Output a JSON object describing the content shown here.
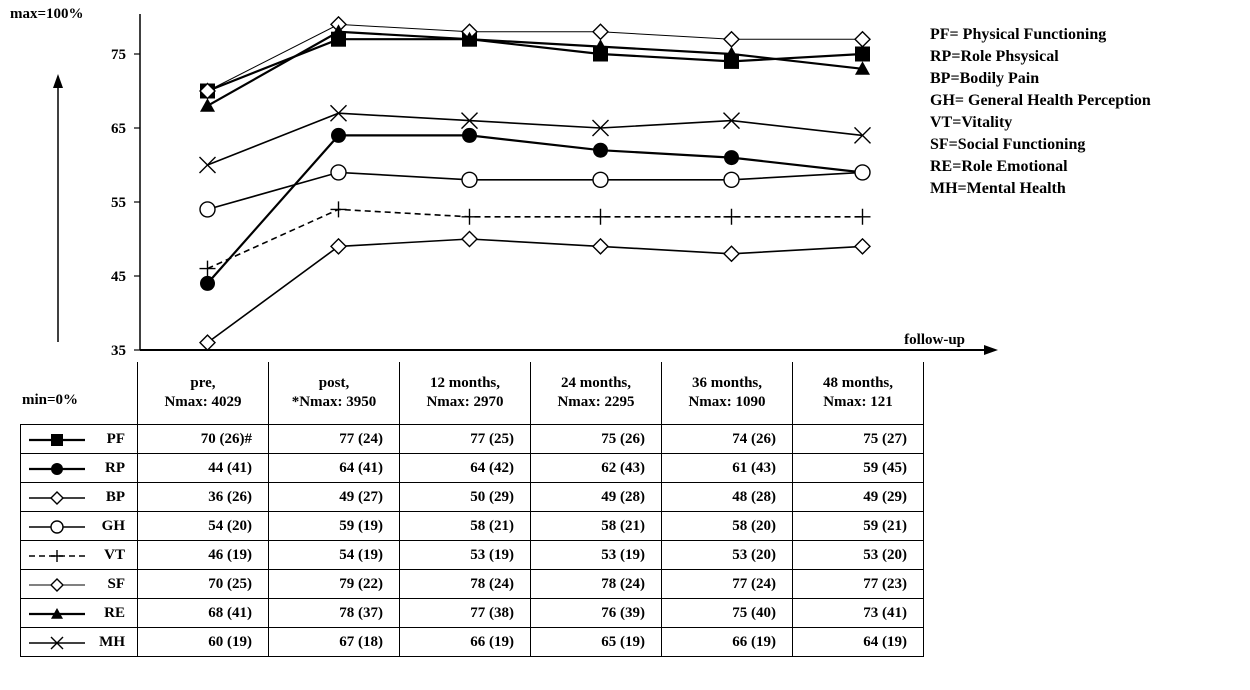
{
  "chart_data": {
    "type": "line",
    "max_label": "max=100%",
    "min_label": "min=0%",
    "x_axis_label": "follow-up",
    "y_ticks": [
      35,
      45,
      55,
      65,
      75
    ],
    "ylim": [
      35,
      80
    ],
    "categories": [
      {
        "line1": "pre,",
        "line2": "Nmax: 4029"
      },
      {
        "line1": "post,",
        "line2": "*Nmax: 3950"
      },
      {
        "line1": "12 months,",
        "line2": "Nmax: 2970"
      },
      {
        "line1": "24 months,",
        "line2": "Nmax: 2295"
      },
      {
        "line1": "36 months,",
        "line2": "Nmax: 1090"
      },
      {
        "line1": "48 months,",
        "line2": "Nmax: 121"
      }
    ],
    "series": [
      {
        "name": "PF",
        "marker": "square-filled",
        "line": "solid-thick",
        "values": [
          70,
          77,
          77,
          75,
          74,
          75
        ],
        "cells": [
          "70 (26)#",
          "77 (24)",
          "77 (25)",
          "75 (26)",
          "74 (26)",
          "75 (27)"
        ]
      },
      {
        "name": "RP",
        "marker": "circle-filled",
        "line": "solid-thick",
        "values": [
          44,
          64,
          64,
          62,
          61,
          59
        ],
        "cells": [
          "44 (41)",
          "64 (41)",
          "64 (42)",
          "62 (43)",
          "61 (43)",
          "59 (45)"
        ]
      },
      {
        "name": "BP",
        "marker": "diamond-open",
        "line": "solid",
        "values": [
          36,
          49,
          50,
          49,
          48,
          49
        ],
        "cells": [
          "36 (26)",
          "49 (27)",
          "50 (29)",
          "49 (28)",
          "48 (28)",
          "49 (29)"
        ]
      },
      {
        "name": "GH",
        "marker": "circle-open",
        "line": "solid",
        "values": [
          54,
          59,
          58,
          58,
          58,
          59
        ],
        "cells": [
          "54 (20)",
          "59 (19)",
          "58 (21)",
          "58 (21)",
          "58 (20)",
          "59 (21)"
        ]
      },
      {
        "name": "VT",
        "marker": "plus",
        "line": "dashed",
        "values": [
          46,
          54,
          53,
          53,
          53,
          53
        ],
        "cells": [
          "46 (19)",
          "54 (19)",
          "53 (19)",
          "53 (19)",
          "53 (20)",
          "53 (20)"
        ]
      },
      {
        "name": "SF",
        "marker": "diamond-open",
        "line": "thin",
        "values": [
          70,
          79,
          78,
          78,
          77,
          77
        ],
        "cells": [
          "70 (25)",
          "79 (22)",
          "78 (24)",
          "78 (24)",
          "77 (24)",
          "77 (23)"
        ]
      },
      {
        "name": "RE",
        "marker": "triangle-filled",
        "line": "solid-thick",
        "values": [
          68,
          78,
          77,
          76,
          75,
          73
        ],
        "cells": [
          "68 (41)",
          "78 (37)",
          "77 (38)",
          "76 (39)",
          "75 (40)",
          "73 (41)"
        ]
      },
      {
        "name": "MH",
        "marker": "x",
        "line": "solid",
        "values": [
          60,
          67,
          66,
          65,
          66,
          64
        ],
        "cells": [
          "60 (19)",
          "67 (18)",
          "66 (19)",
          "65 (19)",
          "66 (19)",
          "64 (19)"
        ]
      }
    ],
    "legend": [
      "PF= Physical Functioning",
      "RP=Role Phsysical",
      "BP=Bodily Pain",
      "GH= General Health  Perception",
      "VT=Vitality",
      "SF=Social Functioning",
      "RE=Role Emotional",
      "MH=Mental Health"
    ],
    "legend_placement": "top-right",
    "grid": false
  }
}
